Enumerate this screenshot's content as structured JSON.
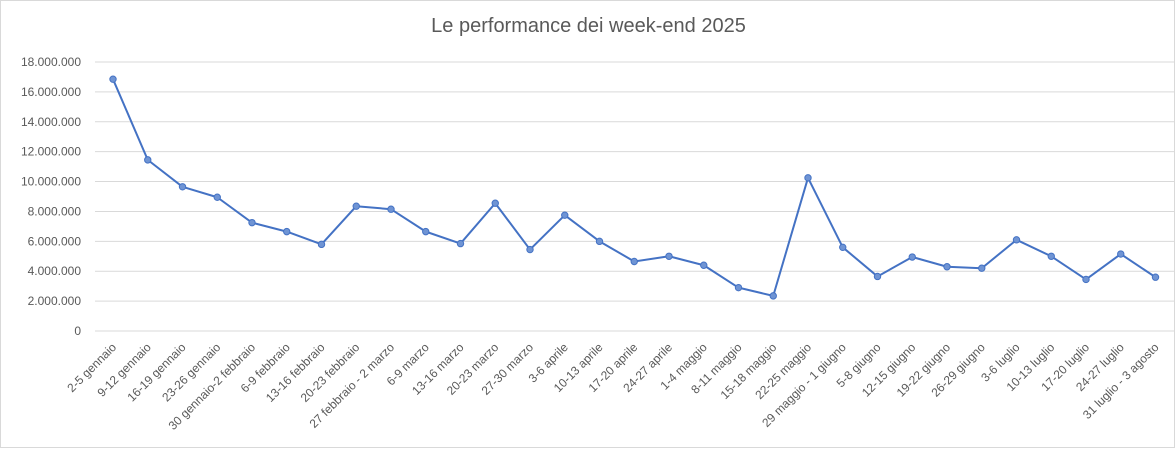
{
  "chart_data": {
    "type": "line",
    "title": "Le performance dei week-end 2025",
    "xlabel": "",
    "ylabel": "",
    "ylim": [
      0,
      18000000
    ],
    "ytick_values": [
      0,
      2000000,
      4000000,
      6000000,
      8000000,
      10000000,
      12000000,
      14000000,
      16000000,
      18000000
    ],
    "ytick_labels": [
      "0",
      "2.000.000",
      "4.000.000",
      "6.000.000",
      "8.000.000",
      "10.000.000",
      "12.000.000",
      "14.000.000",
      "16.000.000",
      "18.000.000"
    ],
    "grid": true,
    "legend": "none",
    "line_color": "#4472c4",
    "marker_fill": "#6f94d4",
    "categories": [
      "2-5 gennaio",
      "9-12 gennaio",
      "16-19 gennaio",
      "23-26 gennaio",
      "30 gennaio-2 febbraio",
      "6-9 febbraio",
      "13-16 febbraio",
      "20-23 febbraio",
      "27 febbraio - 2 marzo",
      "6-9 marzo",
      "13-16 marzo",
      "20-23 marzo",
      "27-30 marzo",
      "3-6 aprile",
      "10-13 aprile",
      "17-20 aprile",
      "24-27 aprile",
      "1-4 maggio",
      "8-11 maggio",
      "15-18 maggio",
      "22-25 maggio",
      "29 maggio - 1 giugno",
      "5-8 giugno",
      "12-15 giugno",
      "19-22 giugno",
      "26-29 giugno",
      "3-6 luglio",
      "10-13 luglio",
      "17-20 luglio",
      "24-27 luglio",
      "31 luglio - 3 agosto"
    ],
    "values": [
      16850000,
      11450000,
      9650000,
      8950000,
      7250000,
      6650000,
      5800000,
      8350000,
      8150000,
      6650000,
      5850000,
      8550000,
      5450000,
      7750000,
      6000000,
      4650000,
      5000000,
      4400000,
      2900000,
      2350000,
      10250000,
      5600000,
      3650000,
      4950000,
      4300000,
      4200000,
      6100000,
      5000000,
      3450000,
      5150000,
      3600000
    ]
  }
}
